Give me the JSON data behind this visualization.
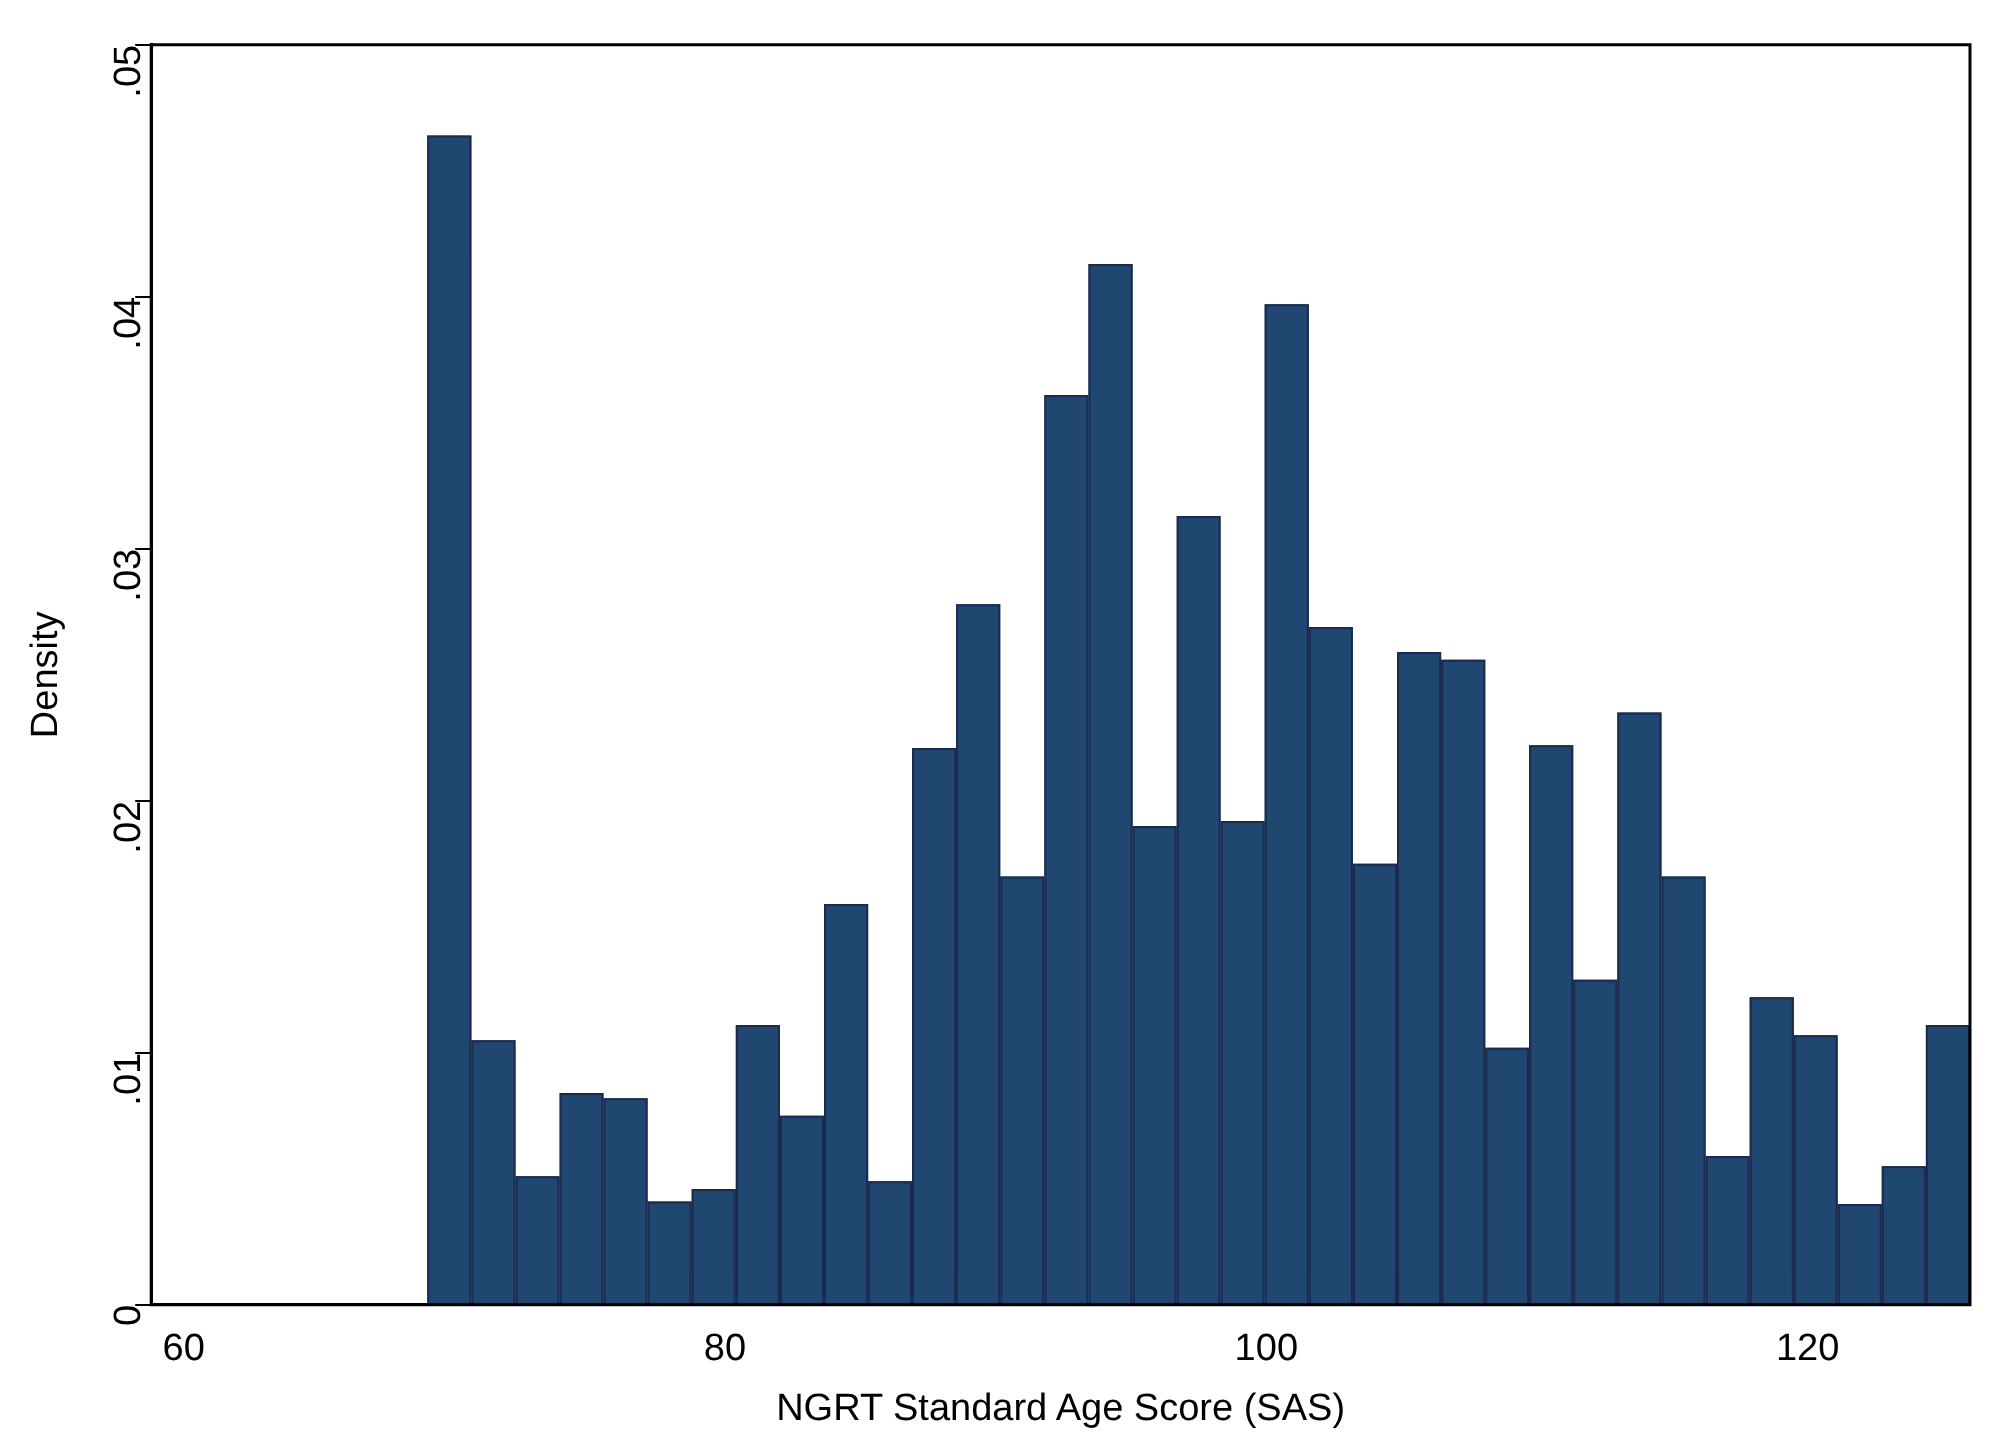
{
  "chart_data": {
    "type": "histogram",
    "xlabel": "NGRT Standard Age Score (SAS)",
    "ylabel": "Density",
    "color": "#1f4770",
    "bins": [
      69,
      70.63,
      72.26,
      73.89,
      75.51,
      77.14,
      78.77,
      80.4,
      82.03,
      83.66,
      85.29,
      86.91,
      88.54,
      90.17,
      91.8,
      93.43,
      95.06,
      96.69,
      98.31,
      99.94,
      101.57,
      103.2,
      104.83,
      106.46,
      108.09,
      109.71,
      111.34,
      112.97,
      114.6,
      116.23,
      117.86,
      119.49,
      121.11,
      122.74,
      124.37,
      126
    ],
    "values": [
      0.0464,
      0.0105,
      0.0051,
      0.0084,
      0.0082,
      0.0041,
      0.0046,
      0.0111,
      0.0075,
      0.0159,
      0.0049,
      0.0221,
      0.0278,
      0.017,
      0.0361,
      0.0413,
      0.019,
      0.0313,
      0.0192,
      0.0397,
      0.0269,
      0.0175,
      0.0259,
      0.0256,
      0.0102,
      0.0222,
      0.0129,
      0.0235,
      0.017,
      0.0059,
      0.0122,
      0.0107,
      0.004,
      0.0055,
      0.0111
    ],
    "xlim": [
      58.8,
      126
    ],
    "xticks": [
      60,
      80,
      100,
      120
    ],
    "ylim": [
      0,
      0.05
    ],
    "yticks": [
      {
        "value": 0,
        "label": "0"
      },
      {
        "value": 0.01,
        "label": ".01"
      },
      {
        "value": 0.02,
        "label": ".02"
      },
      {
        "value": 0.03,
        "label": ".03"
      },
      {
        "value": 0.04,
        "label": ".04"
      },
      {
        "value": 0.05,
        "label": ".05"
      }
    ],
    "grid": false,
    "legend": false
  }
}
